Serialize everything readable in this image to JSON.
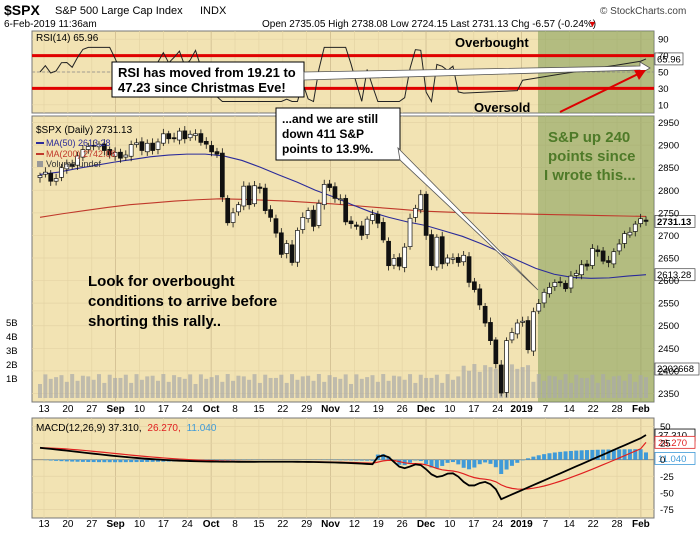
{
  "header": {
    "symbol": "$SPX",
    "name": "S&P 500 Large Cap Index",
    "exchange": "INDX",
    "date": "6-Feb-2019 11:36am",
    "quote": "Open 2735.05  High 2738.08  Low 2724.15  Last 2731.13  Chg -6.57 (-0.24%)",
    "chg_arrow": "▼",
    "brand": "© StockCharts.com"
  },
  "rsi": {
    "label": "RSI(14) 65.96",
    "ticks": [
      "90",
      "70",
      "50",
      "30",
      "10"
    ],
    "value_label": "65.96",
    "overbought_text": "Overbought",
    "oversold_text": "Oversold"
  },
  "price": {
    "legend_main": "$SPX (Daily) 2731.13",
    "legend_ma50": "MA(50) 2613.28",
    "legend_ma200": "MA(200) 2742.08",
    "legend_vol": "Volume undef",
    "ticks": [
      "2950",
      "2900",
      "2850",
      "2800",
      "2750",
      "2700",
      "2650",
      "2600",
      "2550",
      "2500",
      "2450",
      "2400",
      "2350"
    ],
    "last_label": "2731.13",
    "ma50_label": "2613.28",
    "vol_label": "2202668",
    "vol_ticks": [
      "5B",
      "4B",
      "3B",
      "2B",
      "1B"
    ]
  },
  "macd": {
    "label_a": "MACD(12,26,9) 37.310,",
    "label_b": "26.270,",
    "label_c": "11.040",
    "ticks": [
      "50",
      "25",
      "0",
      "-25",
      "-50",
      "-75"
    ],
    "tags": [
      "37.310",
      "26.270",
      "11.040"
    ]
  },
  "xaxis": [
    "13",
    "20",
    "27",
    "Sep",
    "10",
    "17",
    "24",
    "Oct",
    "8",
    "15",
    "22",
    "29",
    "Nov",
    "12",
    "19",
    "26",
    "Dec",
    "10",
    "17",
    "24",
    "2019",
    "7",
    "14",
    "22",
    "28",
    "Feb"
  ],
  "annotations": {
    "rsi_box": "RSI has moved from 19.21 to 47.23 since Christmas Eve!",
    "still_down_1": "...and we are still",
    "still_down_2": "down 411 S&P",
    "still_down_3": "points to 13.9%.",
    "up_1": "S&P up 240",
    "up_2": "points since",
    "up_3": "I wrote this...",
    "look_1": "Look for overbought",
    "look_2": "conditions to arrive before",
    "look_3": "shorting this rally.."
  },
  "colors": {
    "bg_panel": "#f2e3b3",
    "green_overlay": "#8fa86a",
    "ma50": "#2b2b9a",
    "ma200": "#c0392b",
    "rsi_band": "#e00000",
    "macd_line": "#000000",
    "signal_line": "#e02020",
    "histogram": "#3f9ad8",
    "up_text_green": "#4e7a28"
  },
  "chart_data": {
    "type": "candlestick",
    "title": "$SPX S&P 500 Large Cap Index",
    "x_range": [
      "2018-08-10",
      "2019-02-06"
    ],
    "ylim": [
      2340,
      2960
    ],
    "ylabel": "",
    "series": [
      {
        "name": "$SPX (Daily) 2731.13",
        "values": [
          2833,
          2840,
          2820,
          2826,
          2850,
          2858,
          2853,
          2876,
          2890,
          2897,
          2899,
          2902,
          2888,
          2878,
          2884,
          2871,
          2878,
          2901,
          2905,
          2888,
          2904,
          2888,
          2907,
          2925,
          2914,
          2914,
          2931,
          2914,
          2924,
          2925,
          2906,
          2902,
          2885,
          2880,
          2785,
          2728,
          2750,
          2768,
          2809,
          2768,
          2810,
          2804,
          2755,
          2740,
          2705,
          2658,
          2682,
          2640,
          2711,
          2740,
          2755,
          2720,
          2771,
          2813,
          2806,
          2782,
          2781,
          2730,
          2726,
          2720,
          2700,
          2736,
          2746,
          2727,
          2690,
          2633,
          2649,
          2632,
          2674,
          2738,
          2760,
          2790,
          2700,
          2633,
          2696,
          2637,
          2650,
          2650,
          2640,
          2656,
          2596,
          2580,
          2546,
          2506,
          2467,
          2416,
          2351,
          2467,
          2485,
          2506,
          2510,
          2447,
          2531,
          2549,
          2574,
          2585,
          2596,
          2597,
          2582,
          2610,
          2616,
          2635,
          2632,
          2671,
          2664,
          2643,
          2640,
          2664,
          2681,
          2704,
          2707,
          2725,
          2737,
          2731
        ]
      },
      {
        "name": "MA(50) 2613.28",
        "values": [
          2835,
          2840,
          2848,
          2855,
          2862,
          2868,
          2874,
          2878,
          2880,
          2880,
          2876,
          2866,
          2851,
          2834,
          2818,
          2800,
          2785,
          2768,
          2752,
          2740,
          2730,
          2722,
          2710,
          2698,
          2682,
          2664,
          2645,
          2627,
          2614,
          2607,
          2605,
          2606,
          2610,
          2613
        ]
      },
      {
        "name": "MA(200) 2742.08",
        "values": [
          2740,
          2748,
          2755,
          2762,
          2768,
          2772,
          2776,
          2779,
          2781,
          2780,
          2778,
          2776,
          2773,
          2770,
          2766,
          2762,
          2758,
          2754,
          2752,
          2750,
          2749,
          2748,
          2747,
          2746,
          2745,
          2744,
          2743,
          2742
        ]
      }
    ],
    "indicators": {
      "rsi": {
        "name": "RSI(14) 65.96",
        "last": 65.96,
        "ylim": [
          0,
          100
        ],
        "overbought": 70,
        "oversold": 30
      },
      "macd": {
        "name": "MACD(12,26,9)",
        "macd": 37.31,
        "signal": 26.27,
        "histogram": 11.04,
        "ylim": [
          -85,
          60
        ]
      }
    },
    "grid": true,
    "legend": "top-left"
  }
}
